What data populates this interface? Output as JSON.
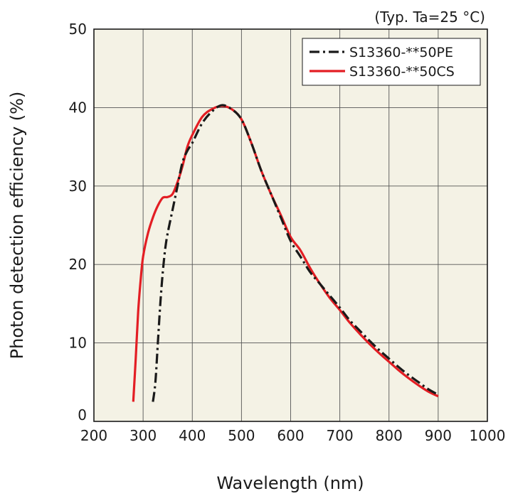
{
  "chart_data": {
    "type": "line",
    "title": "",
    "note": "(Typ. Ta=25 °C)",
    "xlabel": "Wavelength (nm)",
    "ylabel": "Photon detection efficiency (%)",
    "xlim": [
      200,
      1000
    ],
    "ylim": [
      0,
      50
    ],
    "xticks": [
      200,
      300,
      400,
      500,
      600,
      700,
      800,
      900,
      1000
    ],
    "yticks": [
      0,
      10,
      20,
      30,
      40,
      50
    ],
    "grid": true,
    "legend_position": "top-right",
    "series": [
      {
        "name": "S13360-**50PE",
        "color": "#1a1a1a",
        "style": "dash-dot",
        "points": [
          [
            320,
            2.5
          ],
          [
            325,
            5
          ],
          [
            330,
            10
          ],
          [
            335,
            15
          ],
          [
            340,
            19
          ],
          [
            345,
            22
          ],
          [
            350,
            24
          ],
          [
            360,
            27
          ],
          [
            370,
            30
          ],
          [
            380,
            33
          ],
          [
            390,
            34.5
          ],
          [
            400,
            35.5
          ],
          [
            420,
            38
          ],
          [
            440,
            39.5
          ],
          [
            460,
            40.3
          ],
          [
            480,
            39.8
          ],
          [
            500,
            38.5
          ],
          [
            520,
            35.5
          ],
          [
            540,
            32
          ],
          [
            560,
            29
          ],
          [
            580,
            26
          ],
          [
            600,
            23
          ],
          [
            620,
            21
          ],
          [
            640,
            19
          ],
          [
            660,
            17.5
          ],
          [
            680,
            16
          ],
          [
            700,
            14.5
          ],
          [
            720,
            12.9
          ],
          [
            740,
            11.6
          ],
          [
            760,
            10.3
          ],
          [
            780,
            9.1
          ],
          [
            800,
            8.0
          ],
          [
            820,
            6.9
          ],
          [
            840,
            5.9
          ],
          [
            860,
            5.0
          ],
          [
            880,
            4.1
          ],
          [
            900,
            3.4
          ]
        ]
      },
      {
        "name": "S13360-**50CS",
        "color": "#e31e24",
        "style": "solid",
        "points": [
          [
            280,
            2.5
          ],
          [
            285,
            8
          ],
          [
            290,
            14
          ],
          [
            295,
            18
          ],
          [
            300,
            21
          ],
          [
            310,
            24
          ],
          [
            320,
            26
          ],
          [
            330,
            27.5
          ],
          [
            340,
            28.5
          ],
          [
            350,
            28.6
          ],
          [
            360,
            29
          ],
          [
            370,
            30.5
          ],
          [
            380,
            32.5
          ],
          [
            390,
            35
          ],
          [
            400,
            36.5
          ],
          [
            420,
            38.8
          ],
          [
            440,
            39.8
          ],
          [
            460,
            40.2
          ],
          [
            480,
            39.8
          ],
          [
            500,
            38.5
          ],
          [
            520,
            35.5
          ],
          [
            540,
            32
          ],
          [
            560,
            29
          ],
          [
            580,
            26.3
          ],
          [
            600,
            23.5
          ],
          [
            620,
            21.8
          ],
          [
            640,
            19.5
          ],
          [
            660,
            17.5
          ],
          [
            680,
            15.7
          ],
          [
            700,
            14.2
          ],
          [
            720,
            12.6
          ],
          [
            740,
            11.2
          ],
          [
            760,
            9.9
          ],
          [
            780,
            8.7
          ],
          [
            800,
            7.6
          ],
          [
            820,
            6.5
          ],
          [
            840,
            5.5
          ],
          [
            860,
            4.6
          ],
          [
            880,
            3.8
          ],
          [
            900,
            3.2
          ]
        ]
      }
    ]
  }
}
